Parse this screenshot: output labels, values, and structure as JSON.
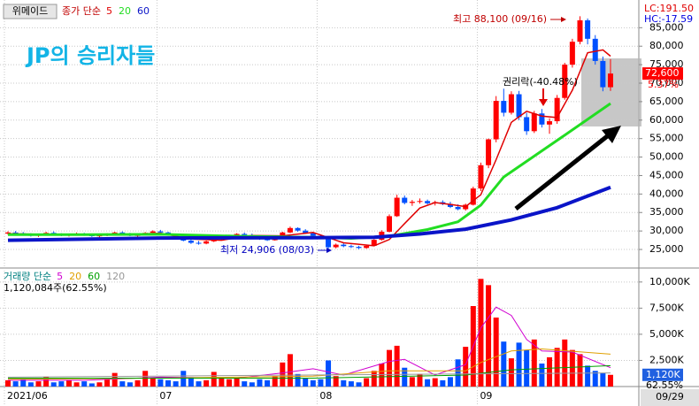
{
  "chart_data": {
    "type": "candlestick",
    "stock_name": "위메이드",
    "price_legend_label": "종가 단순",
    "annotation_title": "JP의 승리자들",
    "lc_label": "LC:191.50",
    "hc_label": "HC:-17.59",
    "high_note": "최고 88,100 (09/16)",
    "low_note": "최저 24,906 (08/03)",
    "rights_note": "권리락(-40.48%)",
    "current_price_label": "72,600",
    "change_label": "5.37%",
    "current_date": "09/29",
    "up_color": "#ff0000",
    "down_color": "#0050ff",
    "grid": true,
    "categories": [
      "2021/06",
      null,
      null,
      null,
      null,
      null,
      null,
      null,
      null,
      null,
      null,
      null,
      null,
      null,
      null,
      null,
      null,
      null,
      null,
      null,
      "07",
      null,
      null,
      null,
      null,
      null,
      null,
      null,
      null,
      null,
      null,
      null,
      null,
      null,
      null,
      null,
      null,
      null,
      null,
      null,
      null,
      "08",
      null,
      null,
      null,
      null,
      null,
      null,
      null,
      null,
      null,
      null,
      null,
      null,
      null,
      null,
      null,
      null,
      null,
      null,
      null,
      null,
      "09",
      null,
      null,
      null,
      null,
      null,
      null,
      null,
      null,
      null,
      null,
      null,
      null,
      null,
      null,
      null,
      null,
      null
    ],
    "open": [
      29300,
      29600,
      29400,
      29000,
      28700,
      29000,
      29500,
      29200,
      28800,
      29100,
      29300,
      28900,
      28600,
      28800,
      29200,
      29600,
      29300,
      28700,
      28900,
      29500,
      29900,
      29600,
      28900,
      28200,
      27400,
      26800,
      26600,
      27200,
      27800,
      28400,
      28700,
      29200,
      28900,
      28500,
      27800,
      27500,
      28400,
      29600,
      30800,
      30100,
      29400,
      28700,
      28000,
      25600,
      26300,
      25900,
      25700,
      25400,
      26000,
      27600,
      29800,
      34000,
      39000,
      37600,
      37900,
      38100,
      37500,
      37800,
      37300,
      36500,
      35900,
      37100,
      41500,
      47800,
      54800,
      65200,
      62000,
      67000,
      60800,
      57000,
      61800,
      58800,
      59700,
      66000,
      75000,
      81200,
      87000,
      82000,
      76000,
      68900
    ],
    "high": [
      29900,
      30000,
      29700,
      29400,
      29200,
      29800,
      29900,
      29400,
      29300,
      29600,
      29500,
      29200,
      29000,
      29400,
      29800,
      29900,
      29500,
      29100,
      29700,
      30200,
      30300,
      29800,
      29200,
      28500,
      27800,
      27300,
      27400,
      28000,
      28600,
      29000,
      29400,
      29600,
      29300,
      28800,
      28200,
      28600,
      29800,
      31200,
      31000,
      30500,
      29800,
      29000,
      28300,
      26600,
      26800,
      26300,
      26000,
      26200,
      27800,
      30200,
      34500,
      39800,
      39600,
      38400,
      38800,
      38500,
      38200,
      38300,
      37900,
      37200,
      37400,
      42000,
      48500,
      55000,
      66500,
      68500,
      67800,
      67900,
      62000,
      62500,
      63000,
      60500,
      66800,
      75500,
      82000,
      88100,
      87500,
      83000,
      77200,
      76500
    ],
    "low": [
      29000,
      29200,
      28800,
      28500,
      28400,
      28900,
      29100,
      28600,
      28500,
      28900,
      28700,
      28400,
      28200,
      28600,
      29000,
      29100,
      28600,
      28300,
      28800,
      29300,
      29400,
      28700,
      28000,
      27200,
      26500,
      26300,
      26400,
      27000,
      27600,
      28100,
      28500,
      28700,
      28300,
      27600,
      27300,
      27400,
      28300,
      29400,
      29800,
      29200,
      28500,
      27800,
      24906,
      25300,
      25600,
      25400,
      25100,
      25200,
      25900,
      27400,
      29600,
      33800,
      37200,
      36800,
      37400,
      37200,
      36900,
      37000,
      36200,
      35600,
      35500,
      36900,
      40800,
      47000,
      54000,
      61000,
      61500,
      60000,
      56000,
      56500,
      58000,
      56300,
      59000,
      65500,
      74200,
      80500,
      80500,
      75000,
      67800,
      67900
    ],
    "close": [
      29600,
      29400,
      29000,
      28700,
      29000,
      29500,
      29200,
      28800,
      29100,
      29300,
      28900,
      28600,
      28800,
      29200,
      29600,
      29300,
      28700,
      28900,
      29500,
      29900,
      29600,
      28900,
      28200,
      27400,
      26800,
      26600,
      27200,
      27800,
      28400,
      28700,
      29200,
      28900,
      28500,
      27800,
      27500,
      28400,
      29600,
      30800,
      30100,
      29400,
      28700,
      28000,
      25600,
      26300,
      25900,
      25700,
      25400,
      26000,
      27600,
      29800,
      34000,
      39000,
      37600,
      37900,
      38100,
      37500,
      37800,
      37300,
      36500,
      35900,
      37100,
      41500,
      47800,
      54800,
      65200,
      62000,
      67000,
      60800,
      57000,
      61800,
      58800,
      59700,
      66000,
      75000,
      81200,
      87000,
      82000,
      76000,
      68900,
      72600
    ],
    "ylim": [
      20700,
      91300
    ],
    "yticks": [
      {
        "value": 85000,
        "label": "85,000"
      },
      {
        "value": 80000,
        "label": "80,000"
      },
      {
        "value": 75000,
        "label": "75,000"
      },
      {
        "value": 70000,
        "label": "70,000"
      },
      {
        "value": 65000,
        "label": "65,000"
      },
      {
        "value": 60000,
        "label": "60,000"
      },
      {
        "value": 55000,
        "label": "55,000"
      },
      {
        "value": 50000,
        "label": "50,000"
      },
      {
        "value": 45000,
        "label": "45,000"
      },
      {
        "value": 40000,
        "label": "40,000"
      },
      {
        "value": 35000,
        "label": "35,000"
      },
      {
        "value": 30000,
        "label": "30,000"
      },
      {
        "value": 25000,
        "label": "25,000"
      }
    ],
    "ma_series": [
      {
        "name": "5",
        "color": "#e00000",
        "x": [
          0,
          4,
          8,
          12,
          16,
          20,
          24,
          28,
          32,
          36,
          40,
          44,
          48,
          50,
          52,
          54,
          56,
          58,
          60,
          62,
          64,
          66,
          68,
          70,
          72,
          74,
          76,
          78,
          79
        ],
        "values": [
          29300,
          29100,
          29000,
          28900,
          29100,
          29400,
          27800,
          27500,
          28800,
          28700,
          29600,
          26800,
          26000,
          27700,
          32000,
          36200,
          37700,
          37200,
          36600,
          39800,
          49300,
          59400,
          62400,
          61100,
          60700,
          68100,
          78200,
          79000,
          77300
        ]
      },
      {
        "name": "20",
        "color": "#22dd22",
        "x": [
          0,
          10,
          20,
          30,
          40,
          45,
          50,
          55,
          59,
          62,
          65,
          72,
          79
        ],
        "values": [
          29000,
          29000,
          29100,
          28600,
          28300,
          28000,
          28600,
          30400,
          32500,
          37000,
          44600,
          54500,
          64500
        ]
      },
      {
        "name": "60",
        "color": "#0a14c8",
        "x": [
          0,
          20,
          40,
          48,
          54,
          60,
          66,
          72,
          79
        ],
        "values": [
          27500,
          28100,
          28200,
          28300,
          29200,
          30500,
          33000,
          36300,
          41800
        ]
      }
    ],
    "volume_panel": {
      "legend_label": "거래량 단순",
      "summary": "1,120,084주(62.55%)",
      "current_label": "1,120K",
      "ratio_label": "62.55%",
      "values": [
        600000,
        500000,
        700000,
        400000,
        500000,
        900000,
        400000,
        500000,
        600000,
        400000,
        500000,
        300000,
        400000,
        700000,
        1300000,
        500000,
        400000,
        600000,
        1500000,
        800000,
        700000,
        600000,
        500000,
        1500000,
        900000,
        500000,
        600000,
        1400000,
        900000,
        700000,
        800000,
        500000,
        400000,
        700000,
        600000,
        1000000,
        2300000,
        3100000,
        1200000,
        800000,
        600000,
        700000,
        2500000,
        1000000,
        600000,
        500000,
        400000,
        800000,
        1500000,
        2200000,
        3500000,
        3900000,
        1800000,
        900000,
        1200000,
        700000,
        800000,
        600000,
        900000,
        2600000,
        3800000,
        7700000,
        10300000,
        9700000,
        6600000,
        4300000,
        2700000,
        4200000,
        3500000,
        4500000,
        2200000,
        2800000,
        3700000,
        4500000,
        3500000,
        3100000,
        2000000,
        1500000,
        1300000,
        1120084
      ],
      "ylim": [
        0,
        11000000
      ],
      "yticks": [
        {
          "value": 10000000,
          "label": "10,000K"
        },
        {
          "value": 7500000,
          "label": "7,500K"
        },
        {
          "value": 5000000,
          "label": "5,000K"
        },
        {
          "value": 2500000,
          "label": "2,500K"
        }
      ],
      "ma_series": [
        {
          "name": "5",
          "color": "#d000d0",
          "x": [
            0,
            10,
            20,
            30,
            36,
            40,
            44,
            50,
            52,
            56,
            60,
            62,
            64,
            66,
            68,
            70,
            74,
            79
          ],
          "values": [
            600000,
            600000,
            900000,
            800000,
            1300000,
            1700000,
            1100000,
            2400000,
            2600000,
            1100000,
            2100000,
            5600000,
            7600000,
            6800000,
            4500000,
            3400000,
            3300000,
            1800000
          ]
        },
        {
          "name": "20",
          "color": "#e0a000",
          "x": [
            0,
            20,
            40,
            50,
            60,
            62,
            66,
            70,
            79
          ],
          "values": [
            700000,
            800000,
            1000000,
            1500000,
            1500000,
            2300000,
            3400000,
            3600000,
            3100000
          ]
        },
        {
          "name": "60",
          "color": "#00a000",
          "x": [
            0,
            40,
            60,
            66,
            79
          ],
          "values": [
            800000,
            800000,
            1100000,
            1600000,
            2000000
          ]
        },
        {
          "name": "120",
          "color": "#999999",
          "x": [
            0,
            79
          ],
          "values": [
            900000,
            1300000
          ]
        }
      ]
    }
  }
}
